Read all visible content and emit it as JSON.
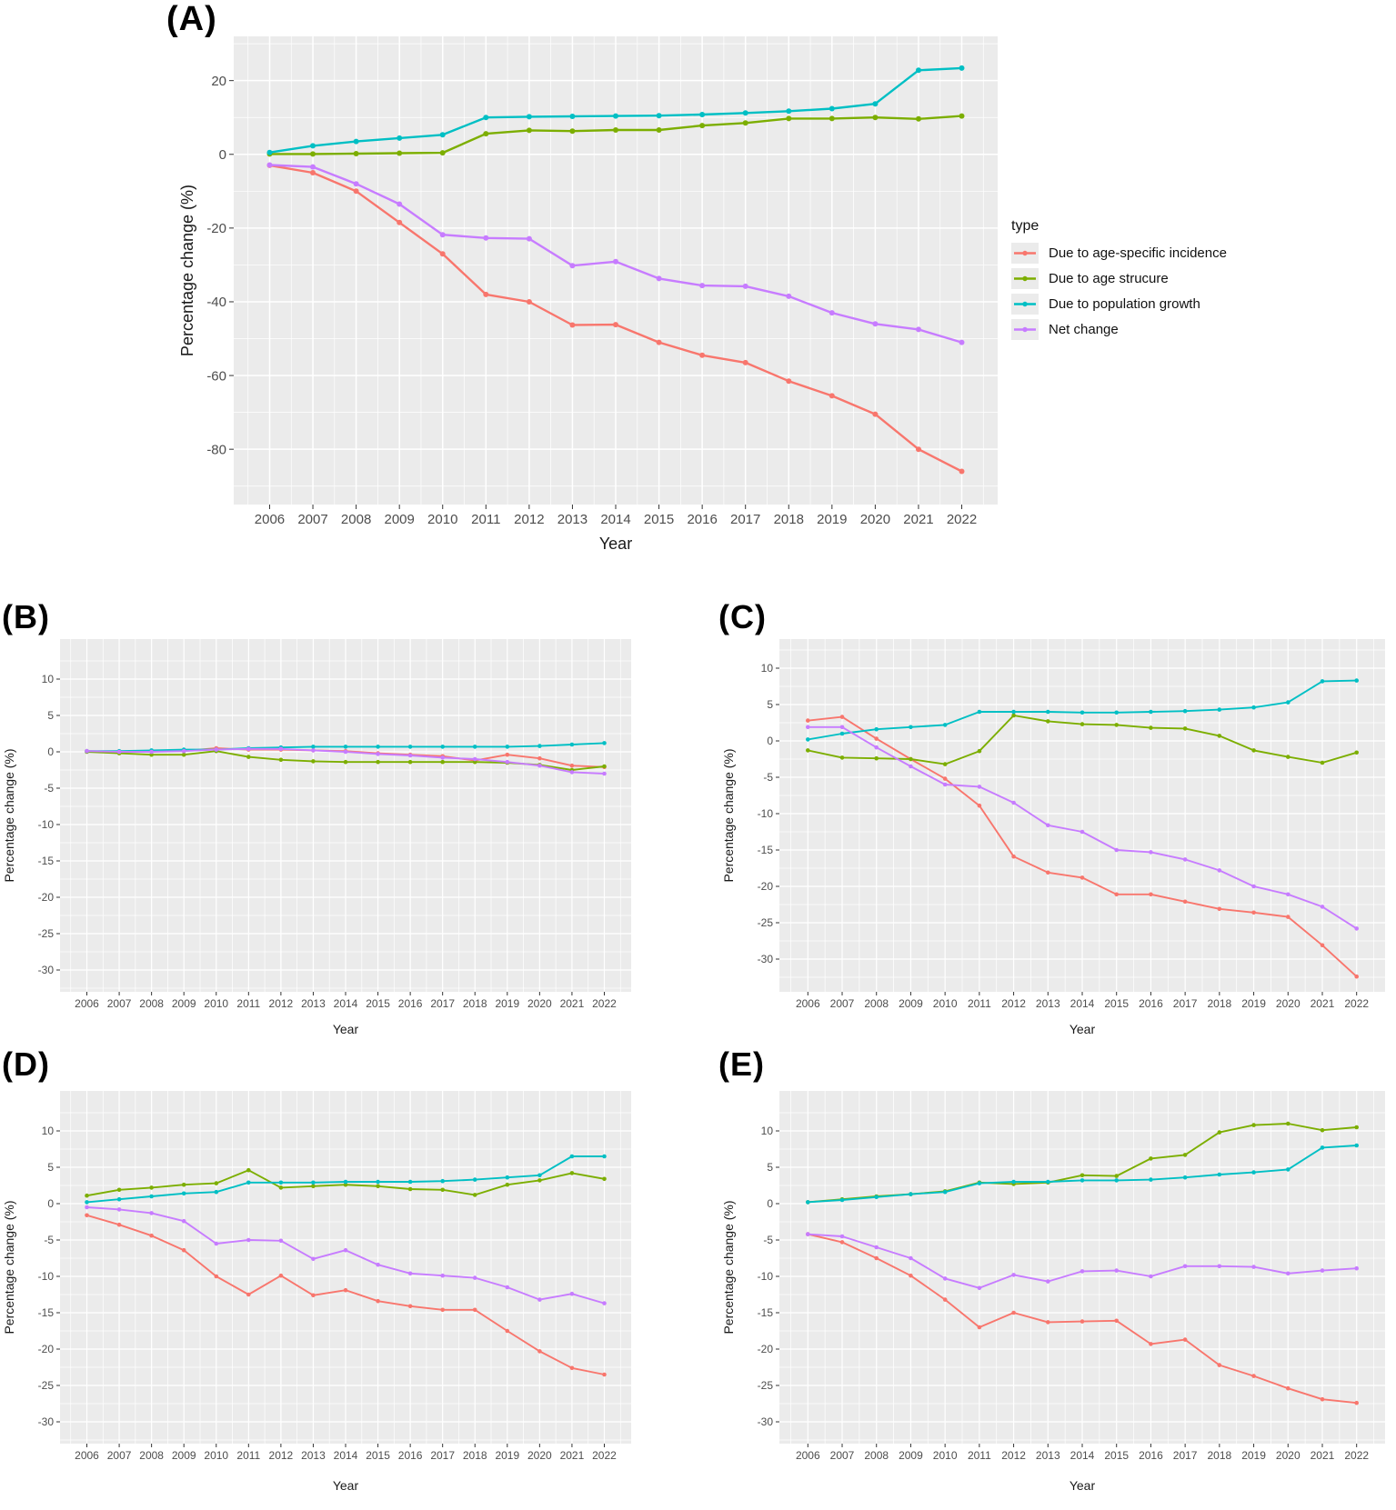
{
  "figure": {
    "panel_labels": [
      "(A)",
      "(B)",
      "(C)",
      "(D)",
      "(E)"
    ]
  },
  "legend": {
    "title": "type",
    "position": "right-of-panel-A",
    "key_background": "#EBEBEB"
  },
  "colors": {
    "incidence": "#F8766D",
    "age_structure": "#7CAE00",
    "population_growth": "#00BFC4",
    "net_change": "#C77CFF",
    "panel_background": "#EBEBEB",
    "gridline": "#FFFFFF",
    "tick_text": "#4D4D4D",
    "axis_title": "#1A1A1A"
  },
  "years": [
    2006,
    2007,
    2008,
    2009,
    2010,
    2011,
    2012,
    2013,
    2014,
    2015,
    2016,
    2017,
    2018,
    2019,
    2020,
    2021,
    2022
  ],
  "chart_data": [
    {
      "id": "A",
      "panel_label": "(A)",
      "type": "line",
      "xlabel": "Year",
      "ylabel": "Percentage change (%)",
      "ylim": [
        -95,
        32
      ],
      "yticks": [
        20,
        0,
        -20,
        -40,
        -60,
        -80
      ],
      "grid": true,
      "legend": true,
      "x": [
        2006,
        2007,
        2008,
        2009,
        2010,
        2011,
        2012,
        2013,
        2014,
        2015,
        2016,
        2017,
        2018,
        2019,
        2020,
        2021,
        2022
      ],
      "series": [
        {
          "name": "Due to age-specific incidence",
          "color": "#F8766D",
          "values": [
            -3,
            -5,
            -10,
            -18.5,
            -27,
            -38,
            -40,
            -46.3,
            -46.2,
            -51,
            -54.5,
            -56.5,
            -61.5,
            -65.5,
            -70.5,
            -80,
            -86
          ]
        },
        {
          "name": "Due to age strucure",
          "color": "#7CAE00",
          "values": [
            0.1,
            0.1,
            0.2,
            0.3,
            0.4,
            5.6,
            6.5,
            6.3,
            6.6,
            6.6,
            7.8,
            8.5,
            9.7,
            9.7,
            10,
            9.6,
            10.4
          ]
        },
        {
          "name": "Due to population growth",
          "color": "#00BFC4",
          "values": [
            0.5,
            2.3,
            3.5,
            4.4,
            5.3,
            10,
            10.2,
            10.3,
            10.4,
            10.5,
            10.8,
            11.2,
            11.7,
            12.4,
            13.7,
            22.8,
            23.4
          ]
        },
        {
          "name": "Net change",
          "color": "#C77CFF",
          "values": [
            -2.9,
            -3.4,
            -8,
            -13.5,
            -21.8,
            -22.7,
            -22.9,
            -30.2,
            -29.1,
            -33.7,
            -35.6,
            -35.8,
            -38.5,
            -43,
            -46,
            -47.5,
            -51
          ]
        }
      ]
    },
    {
      "id": "B",
      "panel_label": "(B)",
      "type": "line",
      "xlabel": "Year",
      "ylabel": "Percentage change (%)",
      "ylim": [
        -33,
        15.5
      ],
      "yticks": [
        10,
        5,
        0,
        -5,
        -10,
        -15,
        -20,
        -25,
        -30
      ],
      "grid": true,
      "legend": false,
      "x": [
        2006,
        2007,
        2008,
        2009,
        2010,
        2011,
        2012,
        2013,
        2014,
        2015,
        2016,
        2017,
        2018,
        2019,
        2020,
        2021,
        2022
      ],
      "series": [
        {
          "name": "Due to age-specific incidence",
          "color": "#F8766D",
          "values": [
            0.1,
            0,
            0.1,
            0.1,
            0.5,
            0.3,
            0.3,
            0.2,
            0.1,
            -0.2,
            -0.4,
            -0.6,
            -1.2,
            -0.4,
            -0.9,
            -1.9,
            -2.1
          ]
        },
        {
          "name": "Due to age strucure",
          "color": "#7CAE00",
          "values": [
            0,
            -0.2,
            -0.4,
            -0.4,
            0.1,
            -0.7,
            -1.1,
            -1.3,
            -1.4,
            -1.4,
            -1.4,
            -1.4,
            -1.4,
            -1.5,
            -1.8,
            -2.5,
            -2
          ]
        },
        {
          "name": "Due to population growth",
          "color": "#00BFC4",
          "values": [
            0.1,
            0.1,
            0.2,
            0.3,
            0.3,
            0.5,
            0.6,
            0.7,
            0.7,
            0.7,
            0.7,
            0.7,
            0.7,
            0.7,
            0.8,
            1,
            1.2
          ]
        },
        {
          "name": "Net change",
          "color": "#C77CFF",
          "values": [
            0.1,
            0,
            0,
            0.1,
            0.3,
            0.4,
            0.4,
            0.2,
            0,
            -0.3,
            -0.5,
            -0.8,
            -1,
            -1.4,
            -1.9,
            -2.8,
            -3
          ]
        }
      ]
    },
    {
      "id": "C",
      "panel_label": "(C)",
      "type": "line",
      "xlabel": "Year",
      "ylabel": "Percentage change (%)",
      "ylim": [
        -34.5,
        14
      ],
      "yticks": [
        10,
        5,
        0,
        -5,
        -10,
        -15,
        -20,
        -25,
        -30
      ],
      "grid": true,
      "legend": false,
      "x": [
        2006,
        2007,
        2008,
        2009,
        2010,
        2011,
        2012,
        2013,
        2014,
        2015,
        2016,
        2017,
        2018,
        2019,
        2020,
        2021,
        2022
      ],
      "series": [
        {
          "name": "Due to age-specific incidence",
          "color": "#F8766D",
          "values": [
            2.8,
            3.3,
            0.3,
            -2.5,
            -5.2,
            -8.9,
            -15.9,
            -18.1,
            -18.8,
            -21.1,
            -21.1,
            -22.1,
            -23.1,
            -23.6,
            -24.2,
            -28.1,
            -32.4
          ]
        },
        {
          "name": "Due to age strucure",
          "color": "#7CAE00",
          "values": [
            -1.3,
            -2.3,
            -2.4,
            -2.5,
            -3.2,
            -1.4,
            3.5,
            2.7,
            2.3,
            2.2,
            1.8,
            1.7,
            0.7,
            -1.3,
            -2.2,
            -3,
            -1.6
          ]
        },
        {
          "name": "Due to population growth",
          "color": "#00BFC4",
          "values": [
            0.2,
            1,
            1.6,
            1.9,
            2.2,
            4,
            4,
            4,
            3.9,
            3.9,
            4,
            4.1,
            4.3,
            4.6,
            5.3,
            8.2,
            8.3
          ]
        },
        {
          "name": "Net change",
          "color": "#C77CFF",
          "values": [
            1.9,
            1.9,
            -0.9,
            -3.5,
            -6,
            -6.3,
            -8.5,
            -11.6,
            -12.5,
            -15,
            -15.3,
            -16.3,
            -17.8,
            -20,
            -21.1,
            -22.8,
            -25.8
          ]
        }
      ]
    },
    {
      "id": "D",
      "panel_label": "(D)",
      "type": "line",
      "xlabel": "Year",
      "ylabel": "Percentage change (%)",
      "ylim": [
        -33,
        15.5
      ],
      "yticks": [
        10,
        5,
        0,
        -5,
        -10,
        -15,
        -20,
        -25,
        -30
      ],
      "grid": true,
      "legend": false,
      "x": [
        2006,
        2007,
        2008,
        2009,
        2010,
        2011,
        2012,
        2013,
        2014,
        2015,
        2016,
        2017,
        2018,
        2019,
        2020,
        2021,
        2022
      ],
      "series": [
        {
          "name": "Due to age-specific incidence",
          "color": "#F8766D",
          "values": [
            -1.6,
            -2.9,
            -4.4,
            -6.4,
            -10,
            -12.5,
            -9.9,
            -12.6,
            -11.9,
            -13.4,
            -14.1,
            -14.6,
            -14.6,
            -17.5,
            -20.3,
            -22.6,
            -23.5
          ]
        },
        {
          "name": "Due to age strucure",
          "color": "#7CAE00",
          "values": [
            1.1,
            1.9,
            2.2,
            2.6,
            2.8,
            4.6,
            2.2,
            2.4,
            2.6,
            2.4,
            2,
            1.9,
            1.2,
            2.6,
            3.2,
            4.2,
            3.4
          ]
        },
        {
          "name": "Due to population growth",
          "color": "#00BFC4",
          "values": [
            0.2,
            0.6,
            1,
            1.4,
            1.6,
            2.9,
            2.9,
            2.9,
            3,
            3,
            3,
            3.1,
            3.3,
            3.6,
            3.9,
            6.5,
            6.5
          ]
        },
        {
          "name": "Net change",
          "color": "#C77CFF",
          "values": [
            -0.5,
            -0.8,
            -1.3,
            -2.4,
            -5.5,
            -5,
            -5.1,
            -7.6,
            -6.4,
            -8.4,
            -9.6,
            -9.9,
            -10.2,
            -11.5,
            -13.2,
            -12.4,
            -13.7
          ]
        }
      ]
    },
    {
      "id": "E",
      "panel_label": "(E)",
      "type": "line",
      "xlabel": "Year",
      "ylabel": "Percentage change (%)",
      "ylim": [
        -33,
        15.5
      ],
      "yticks": [
        10,
        5,
        0,
        -5,
        -10,
        -15,
        -20,
        -25,
        -30
      ],
      "grid": true,
      "legend": false,
      "x": [
        2006,
        2007,
        2008,
        2009,
        2010,
        2011,
        2012,
        2013,
        2014,
        2015,
        2016,
        2017,
        2018,
        2019,
        2020,
        2021,
        2022
      ],
      "series": [
        {
          "name": "Due to age-specific incidence",
          "color": "#F8766D",
          "values": [
            -4.2,
            -5.3,
            -7.5,
            -9.9,
            -13.2,
            -17,
            -15,
            -16.3,
            -16.2,
            -16.1,
            -19.3,
            -18.7,
            -22.2,
            -23.7,
            -25.4,
            -26.9,
            -27.4
          ]
        },
        {
          "name": "Due to age strucure",
          "color": "#7CAE00",
          "values": [
            0.2,
            0.6,
            1,
            1.3,
            1.7,
            2.9,
            2.7,
            2.9,
            3.9,
            3.8,
            6.2,
            6.7,
            9.8,
            10.8,
            11,
            10.1,
            10.5
          ]
        },
        {
          "name": "Due to population growth",
          "color": "#00BFC4",
          "values": [
            0.2,
            0.5,
            0.9,
            1.3,
            1.6,
            2.8,
            3,
            3,
            3.2,
            3.2,
            3.3,
            3.6,
            4,
            4.3,
            4.7,
            7.7,
            8
          ]
        },
        {
          "name": "Net change",
          "color": "#C77CFF",
          "values": [
            -4.2,
            -4.5,
            -6,
            -7.5,
            -10.3,
            -11.6,
            -9.8,
            -10.7,
            -9.3,
            -9.2,
            -10,
            -8.6,
            -8.6,
            -8.7,
            -9.6,
            -9.2,
            -8.9
          ]
        }
      ]
    }
  ]
}
